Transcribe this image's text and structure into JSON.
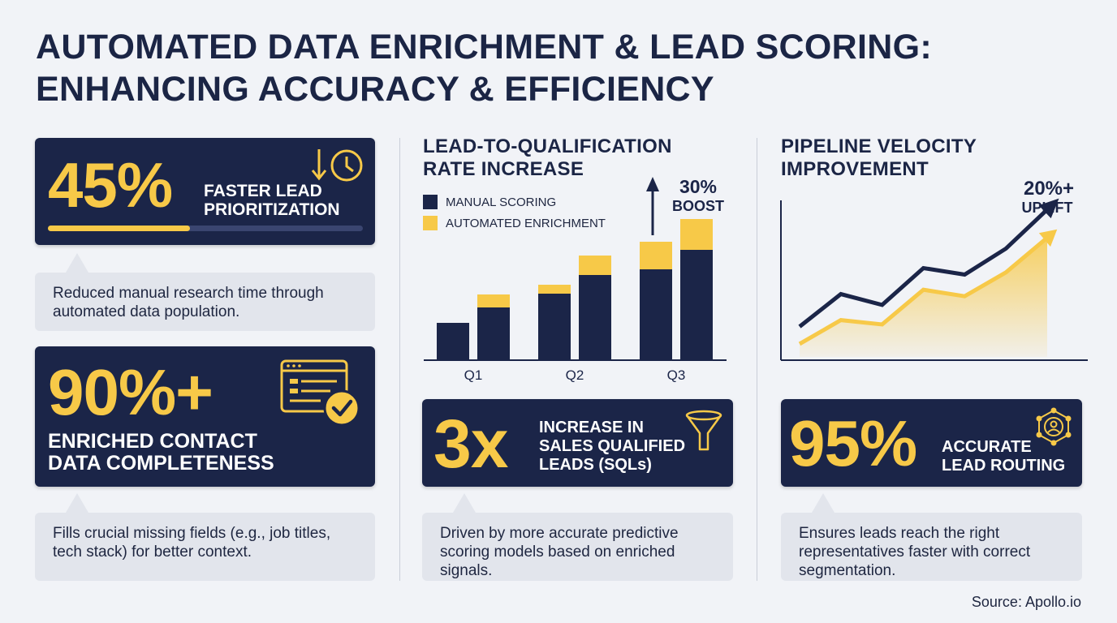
{
  "title_line1": "AUTOMATED DATA ENRICHMENT & LEAD SCORING:",
  "title_line2": "ENHANCING ACCURACY & EFFICIENCY",
  "colors": {
    "navy": "#1b2548",
    "gold": "#f7c948",
    "bubble": "#e2e5ec"
  },
  "stat1": {
    "value": "45%",
    "label_line1": "FASTER LEAD",
    "label_line2": "PRIORITIZATION",
    "progress_fraction": 0.45,
    "icon": "arrow-down-clock-icon",
    "note": "Reduced manual research time through automated data population."
  },
  "stat2": {
    "value": "90%+",
    "label_line1": "ENRICHED CONTACT",
    "label_line2": "DATA COMPLETENESS",
    "icon": "browser-checkmark-icon",
    "note": "Fills crucial missing fields (e.g., job titles, tech stack) for better context."
  },
  "bar_section": {
    "title_line1": "LEAD-TO-QUALIFICATION",
    "title_line2": "RATE INCREASE",
    "boost_value": "30%",
    "boost_label": "BOOST"
  },
  "stat3": {
    "value": "3x",
    "label_line1": "INCREASE IN",
    "label_line2": "SALES QUALIFIED",
    "label_line3": "LEADS (SQLs)",
    "icon": "funnel-icon",
    "note": "Driven by more accurate predictive scoring models based on enriched signals."
  },
  "line_section": {
    "title_line1": "PIPELINE VELOCITY",
    "title_line2": "IMPROVEMENT",
    "uplift_value": "20%+",
    "uplift_label": "UPLIFT"
  },
  "stat4": {
    "value": "95%",
    "label_line1": "ACCURATE",
    "label_line2": "LEAD ROUTING",
    "icon": "network-person-icon",
    "note": "Ensures leads reach the right representatives faster with correct segmentation."
  },
  "source": "Source: Apollo.io",
  "chart_data": [
    {
      "type": "bar",
      "title": "LEAD-TO-QUALIFICATION RATE INCREASE",
      "categories": [
        "Q1",
        "Q2",
        "Q3"
      ],
      "legend": [
        "MANUAL SCORING",
        "AUTOMATED ENRICHMENT"
      ],
      "bar_groups": [
        {
          "category": "Q1",
          "bars": [
            {
              "base": 46,
              "enriched": 0
            },
            {
              "base": 65,
              "enriched": 16
            }
          ]
        },
        {
          "category": "Q2",
          "bars": [
            {
              "base": 82,
              "enriched": 11
            },
            {
              "base": 105,
              "enriched": 24
            }
          ]
        },
        {
          "category": "Q3",
          "bars": [
            {
              "base": 112,
              "enriched": 34
            },
            {
              "base": 136,
              "enriched": 38
            }
          ]
        }
      ],
      "annotation": "30% BOOST"
    },
    {
      "type": "line",
      "title": "PIPELINE VELOCITY IMPROVEMENT",
      "x": [
        0,
        1,
        2,
        3,
        4,
        5,
        6
      ],
      "series": [
        {
          "values": [
            14,
            29,
            24,
            41,
            38,
            50,
            68
          ]
        },
        {
          "values": [
            6,
            17,
            15,
            31,
            28,
            39,
            55
          ]
        }
      ],
      "annotation": "20%+ UPLIFT"
    }
  ]
}
